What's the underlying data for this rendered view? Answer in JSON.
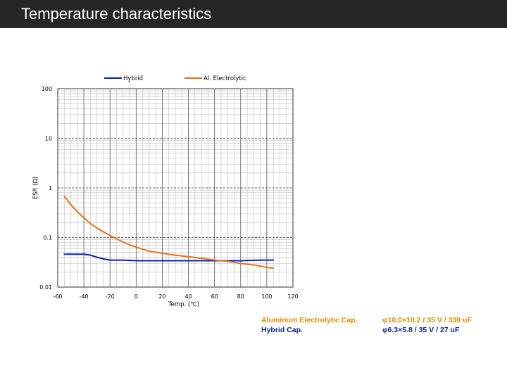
{
  "header": {
    "title": "Temperature characteristics"
  },
  "chart_data": {
    "type": "line",
    "xlabel": "Temp. (℃)",
    "ylabel": "ESR (Ω)",
    "xlim": [
      -60,
      120
    ],
    "ylim": [
      0.01,
      100
    ],
    "yscale": "log",
    "grid": true,
    "legend_position": "top",
    "xticks": [
      -60,
      -40,
      -20,
      0,
      20,
      40,
      60,
      80,
      100,
      120
    ],
    "yticks": [
      {
        "value": 0.01,
        "label": "0.01"
      },
      {
        "value": 0.1,
        "label": "0.1"
      },
      {
        "value": 1,
        "label": "1"
      },
      {
        "value": 10,
        "label": "10"
      },
      {
        "value": 100,
        "label": "100"
      }
    ],
    "series": [
      {
        "name": "Hybrid",
        "color": "#0a1fb4",
        "points": [
          [
            -55,
            0.046
          ],
          [
            -50,
            0.046
          ],
          [
            -45,
            0.046
          ],
          [
            -40,
            0.046
          ],
          [
            -35,
            0.044
          ],
          [
            -30,
            0.04
          ],
          [
            -25,
            0.037
          ],
          [
            -20,
            0.035
          ],
          [
            -10,
            0.035
          ],
          [
            0,
            0.034
          ],
          [
            20,
            0.034
          ],
          [
            40,
            0.034
          ],
          [
            60,
            0.034
          ],
          [
            80,
            0.034
          ],
          [
            95,
            0.035
          ],
          [
            105,
            0.035
          ]
        ]
      },
      {
        "name": "Al. Electrolytic",
        "color": "#e2731f",
        "points": [
          [
            -55,
            0.68
          ],
          [
            -50,
            0.46
          ],
          [
            -45,
            0.33
          ],
          [
            -40,
            0.25
          ],
          [
            -35,
            0.19
          ],
          [
            -30,
            0.155
          ],
          [
            -25,
            0.13
          ],
          [
            -20,
            0.11
          ],
          [
            -15,
            0.094
          ],
          [
            -10,
            0.081
          ],
          [
            -5,
            0.071
          ],
          [
            0,
            0.064
          ],
          [
            5,
            0.058
          ],
          [
            10,
            0.053
          ],
          [
            20,
            0.048
          ],
          [
            30,
            0.044
          ],
          [
            40,
            0.041
          ],
          [
            50,
            0.038
          ],
          [
            60,
            0.035
          ],
          [
            70,
            0.033
          ],
          [
            80,
            0.03
          ],
          [
            90,
            0.028
          ],
          [
            100,
            0.025
          ],
          [
            105,
            0.024
          ]
        ]
      }
    ]
  },
  "specs": {
    "al_label": "Aluminum Electrolytic Cap.",
    "al_value": "φ10.0×10.2 / 35 V / 330 uF",
    "hybrid_label": "Hybrid Cap.",
    "hybrid_value": "φ6.3×5.8 / 35 V / 27 uF",
    "al_color": "#e28a00",
    "hybrid_color": "#0a1f8c"
  }
}
